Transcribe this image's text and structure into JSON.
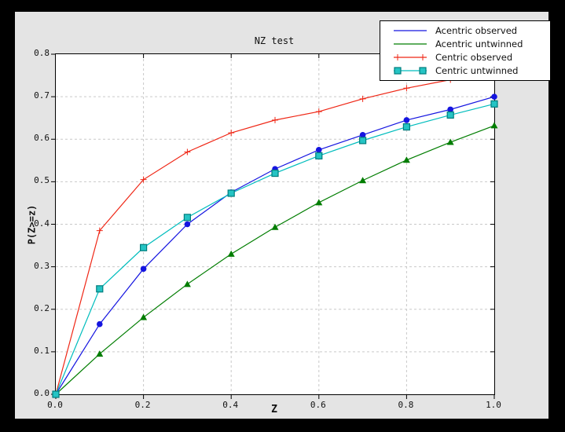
{
  "window": {
    "background": "#000000",
    "figure_background": "#e4e4e4",
    "plot_background": "#ffffff"
  },
  "chart_data": {
    "type": "line",
    "title": "NZ test",
    "xlabel": "Z",
    "ylabel": "P(Z>=z)",
    "xlim": [
      0.0,
      1.0
    ],
    "ylim": [
      0.0,
      0.8
    ],
    "xtick_labels": [
      "0.0",
      "0.2",
      "0.4",
      "0.6",
      "0.8",
      "1.0"
    ],
    "ytick_labels": [
      "0.0",
      "0.1",
      "0.2",
      "0.3",
      "0.4",
      "0.5",
      "0.6",
      "0.7",
      "0.8"
    ],
    "grid": {
      "on": true,
      "style": "dashed",
      "color": "#c9c9c9",
      "x_gridlines": [
        0.2,
        0.4,
        0.6,
        0.8
      ],
      "y_gridlines": [
        0.1,
        0.2,
        0.3,
        0.4,
        0.5,
        0.6,
        0.7
      ]
    },
    "x": [
      0.0,
      0.1,
      0.2,
      0.3,
      0.4,
      0.5,
      0.6,
      0.7,
      0.8,
      0.9,
      1.0
    ],
    "series": [
      {
        "name": "Acentric observed",
        "color": "#1515e0",
        "marker": "circle",
        "marker_fill": "#1515e0",
        "marker_edge": "#0000a8",
        "values": [
          0.0,
          0.165,
          0.295,
          0.4,
          0.475,
          0.53,
          0.575,
          0.61,
          0.645,
          0.67,
          0.7
        ]
      },
      {
        "name": "Acentric untwinned",
        "color": "#007d00",
        "marker": "triangle",
        "marker_fill": "#007d00",
        "marker_edge": "#005a00",
        "values": [
          0.0,
          0.095,
          0.181,
          0.259,
          0.33,
          0.393,
          0.451,
          0.503,
          0.551,
          0.593,
          0.632
        ]
      },
      {
        "name": "Centric observed",
        "color": "#ef2615",
        "marker": "plus",
        "marker_fill": "#ef2615",
        "marker_edge": "#ef2615",
        "values": [
          0.0,
          0.385,
          0.505,
          0.57,
          0.615,
          0.645,
          0.665,
          0.695,
          0.72,
          0.74,
          0.755
        ]
      },
      {
        "name": "Centric untwinned",
        "color": "#00bdbd",
        "marker": "square",
        "marker_fill": "#25c4c4",
        "marker_edge": "#007d7d",
        "values": [
          0.0,
          0.248,
          0.345,
          0.416,
          0.473,
          0.52,
          0.561,
          0.597,
          0.629,
          0.657,
          0.683
        ]
      }
    ],
    "legend": {
      "position": "upper right",
      "entries": [
        "Acentric observed",
        "Acentric untwinned",
        "Centric observed",
        "Centric untwinned"
      ]
    }
  }
}
